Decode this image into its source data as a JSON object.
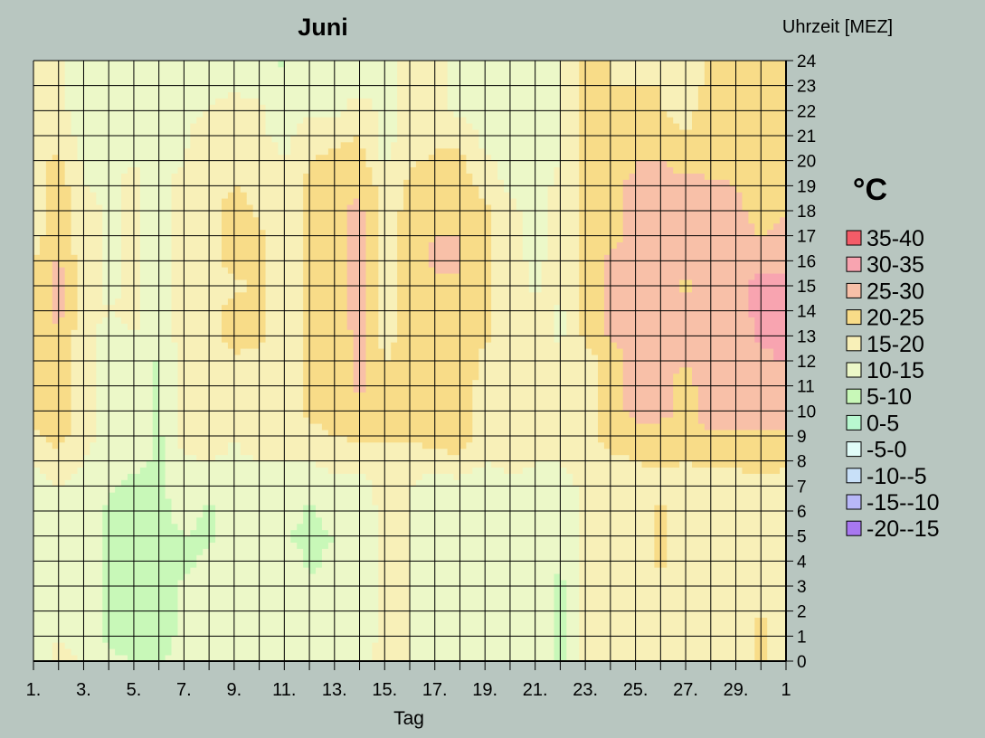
{
  "chart_data": {
    "type": "heatmap",
    "title": "Juni",
    "ylabel": "Uhrzeit [MEZ]",
    "xlabel": "Tag",
    "legend_title": "°C",
    "legend_placement": "right",
    "x_ticks": [
      "1.",
      "3.",
      "5.",
      "7.",
      "9.",
      "11.",
      "13.",
      "15.",
      "17.",
      "19.",
      "21.",
      "23.",
      "25.",
      "27.",
      "29.",
      "1"
    ],
    "y_ticks": [
      "0",
      "1",
      "2",
      "3",
      "4",
      "5",
      "6",
      "7",
      "8",
      "9",
      "10",
      "11",
      "12",
      "13",
      "14",
      "15",
      "16",
      "17",
      "18",
      "19",
      "20",
      "21",
      "22",
      "23",
      "24"
    ],
    "xlim": [
      1,
      31
    ],
    "ylim": [
      0,
      24
    ],
    "bands": [
      {
        "label": "35-40",
        "min": 35,
        "max": 40,
        "color": "#f45c68"
      },
      {
        "label": "30-35",
        "min": 30,
        "max": 35,
        "color": "#f8a4b0"
      },
      {
        "label": "25-30",
        "min": 25,
        "max": 30,
        "color": "#f8c0a8"
      },
      {
        "label": "20-25",
        "min": 20,
        "max": 25,
        "color": "#f8dc88"
      },
      {
        "label": "15-20",
        "min": 15,
        "max": 20,
        "color": "#f8f0b8"
      },
      {
        "label": "10-15",
        "min": 10,
        "max": 15,
        "color": "#ecf8c8"
      },
      {
        "label": "5-10",
        "min": 5,
        "max": 10,
        "color": "#c8f8b8"
      },
      {
        "label": "0-5",
        "min": 0,
        "max": 5,
        "color": "#b8f8d0"
      },
      {
        "label": "-5-0",
        "min": -5,
        "max": 0,
        "color": "#e0fcf8"
      },
      {
        "label": "-10--5",
        "min": -10,
        "max": -5,
        "color": "#c8e0f8"
      },
      {
        "label": "-15--10",
        "min": -15,
        "max": -10,
        "color": "#b8b8f8"
      },
      {
        "label": "-20--15",
        "min": -20,
        "max": -15,
        "color": "#a878f0"
      }
    ],
    "values_by_day_hour0to24": [
      [
        13,
        13,
        13,
        13,
        13,
        13,
        13,
        13,
        15,
        19,
        21,
        21,
        21,
        21,
        21,
        21,
        20,
        18,
        18,
        18,
        18,
        15,
        15,
        15,
        15
      ],
      [
        16,
        15,
        14,
        14,
        14,
        14,
        14,
        15,
        18,
        22,
        22,
        22,
        22,
        24,
        27,
        27,
        26,
        23,
        23,
        23,
        21,
        18,
        16,
        16,
        16
      ],
      [
        15,
        13,
        13,
        13,
        13,
        13,
        13,
        13,
        15,
        17,
        17,
        17,
        17,
        17,
        17,
        17,
        17,
        17,
        17,
        15,
        14,
        13,
        13,
        13,
        13
      ],
      [
        11,
        9,
        9,
        9,
        9,
        9,
        9,
        11,
        12,
        13,
        13,
        13,
        13,
        13,
        15,
        14,
        14,
        14,
        14,
        14,
        14,
        13,
        13,
        13,
        13
      ],
      [
        10,
        8,
        8,
        8,
        8,
        8,
        8,
        8,
        12,
        14,
        14,
        14,
        14,
        15,
        16,
        16,
        16,
        16,
        16,
        16,
        15,
        13,
        13,
        13,
        15
      ],
      [
        9,
        8,
        8,
        8,
        8,
        8,
        8,
        9,
        9,
        9,
        9,
        9,
        9,
        13,
        13,
        13,
        13,
        13,
        13,
        13,
        13,
        13,
        13,
        13,
        13
      ],
      [
        12,
        11,
        11,
        11,
        9,
        10,
        12,
        13,
        14,
        17,
        17,
        17,
        17,
        17,
        17,
        17,
        17,
        17,
        17,
        17,
        15,
        14,
        14,
        14,
        14
      ],
      [
        11,
        11,
        11,
        11,
        11,
        9,
        9,
        12,
        15,
        18,
        18,
        18,
        18,
        18,
        18,
        18,
        18,
        18,
        18,
        18,
        18,
        18,
        15,
        13,
        13
      ],
      [
        13,
        13,
        13,
        13,
        13,
        13,
        13,
        13,
        14,
        15,
        17,
        19,
        19,
        22,
        22,
        19,
        22,
        22,
        22,
        20,
        18,
        18,
        18,
        14,
        14
      ],
      [
        13,
        13,
        13,
        13,
        13,
        13,
        13,
        13,
        15,
        18,
        18,
        18,
        18,
        21,
        21,
        21,
        21,
        21,
        19,
        19,
        19,
        16,
        16,
        13,
        13
      ],
      [
        13,
        13,
        13,
        13,
        13,
        10,
        13,
        13,
        15,
        17,
        17,
        17,
        17,
        17,
        17,
        17,
        17,
        17,
        17,
        17,
        15,
        13,
        13,
        13,
        9
      ],
      [
        11,
        11,
        11,
        11,
        9,
        9,
        9,
        13,
        15,
        18,
        21,
        21,
        21,
        21,
        21,
        21,
        21,
        21,
        21,
        21,
        20,
        18,
        14,
        14,
        14
      ],
      [
        11,
        11,
        11,
        11,
        11,
        10,
        12,
        14,
        16,
        20,
        23,
        23,
        23,
        23,
        24,
        24,
        24,
        24,
        24,
        23,
        21,
        19,
        14,
        14,
        14
      ],
      [
        14,
        13,
        13,
        13,
        13,
        13,
        13,
        14,
        16,
        21,
        24,
        26,
        26,
        26,
        26,
        26,
        26,
        26,
        26,
        24,
        22,
        20,
        17,
        14,
        14
      ],
      [
        16,
        16,
        16,
        16,
        16,
        16,
        16,
        16,
        17,
        21,
        21,
        21,
        20,
        18,
        18,
        18,
        18,
        18,
        18,
        18,
        14,
        14,
        14,
        14,
        14
      ],
      [
        15,
        15,
        15,
        15,
        15,
        15,
        15,
        15,
        17,
        21,
        21,
        21,
        21,
        23,
        23,
        23,
        23,
        23,
        21,
        21,
        19,
        16,
        16,
        16,
        16
      ],
      [
        13,
        13,
        13,
        13,
        13,
        13,
        13,
        13,
        17,
        23,
        23,
        23,
        23,
        24,
        24,
        24,
        26,
        25,
        23,
        23,
        21,
        19,
        16,
        16,
        16
      ],
      [
        13,
        13,
        13,
        13,
        13,
        12,
        13,
        13,
        19,
        23,
        23,
        23,
        25,
        25,
        25,
        25,
        25,
        25,
        23,
        23,
        21,
        19,
        14,
        14,
        14
      ],
      [
        12,
        12,
        12,
        12,
        12,
        12,
        12,
        12,
        15,
        18,
        18,
        18,
        18,
        21,
        21,
        21,
        21,
        21,
        21,
        18,
        16,
        13,
        13,
        13,
        13
      ],
      [
        13,
        13,
        13,
        13,
        11,
        11,
        13,
        13,
        17,
        17,
        17,
        17,
        17,
        17,
        17,
        17,
        17,
        17,
        17,
        14,
        13,
        13,
        13,
        13,
        13
      ],
      [
        14,
        14,
        14,
        14,
        14,
        14,
        14,
        14,
        15,
        17,
        17,
        17,
        17,
        17,
        17,
        14,
        14,
        12,
        12,
        12,
        12,
        12,
        13,
        13,
        10
      ],
      [
        9,
        9,
        9,
        9,
        10,
        10,
        10,
        13,
        15,
        17,
        17,
        17,
        17,
        14,
        14,
        17,
        17,
        17,
        17,
        17,
        15,
        15,
        15,
        15,
        15
      ],
      [
        16,
        16,
        16,
        16,
        16,
        16,
        16,
        16,
        17,
        18,
        18,
        18,
        18,
        21,
        21,
        21,
        21,
        21,
        21,
        21,
        21,
        21,
        21,
        21,
        21
      ],
      [
        17,
        17,
        17,
        17,
        17,
        17,
        17,
        17,
        19,
        22,
        22,
        22,
        22,
        26,
        26,
        26,
        26,
        24,
        24,
        24,
        21,
        21,
        21,
        20,
        20
      ],
      [
        18,
        18,
        18,
        18,
        18,
        18,
        18,
        18,
        20,
        22,
        27,
        27,
        27,
        27,
        27,
        27,
        27,
        26,
        26,
        26,
        25,
        22,
        22,
        20,
        19
      ],
      [
        18,
        18,
        18,
        18,
        21,
        21,
        21,
        18,
        21,
        22,
        27,
        27,
        27,
        27,
        27,
        27,
        27,
        27,
        27,
        27,
        25,
        22,
        20,
        20,
        20
      ],
      [
        17,
        17,
        17,
        17,
        17,
        17,
        17,
        17,
        20,
        23,
        23,
        23,
        25,
        26,
        26,
        24,
        27,
        27,
        27,
        27,
        23,
        20,
        18,
        18,
        18
      ],
      [
        18,
        18,
        18,
        18,
        18,
        18,
        18,
        18,
        21,
        24,
        28,
        28,
        28,
        28,
        28,
        28,
        28,
        28,
        28,
        26,
        23,
        23,
        23,
        21,
        21
      ],
      [
        17,
        18,
        18,
        18,
        18,
        18,
        18,
        18,
        21,
        24,
        27,
        27,
        27,
        27,
        29,
        29,
        27,
        27,
        27,
        25,
        22,
        22,
        22,
        22,
        22
      ],
      [
        21,
        21,
        20,
        18,
        18,
        18,
        18,
        18,
        22,
        24,
        28,
        28,
        28,
        31,
        31,
        31,
        29,
        25,
        22,
        22,
        22,
        22,
        22,
        20,
        21
      ],
      [
        18,
        18,
        18,
        18,
        18,
        18,
        18,
        18,
        21,
        25,
        25,
        25,
        31,
        31,
        31,
        31,
        29,
        27,
        25,
        25,
        22,
        22,
        22,
        22,
        22
      ]
    ]
  }
}
